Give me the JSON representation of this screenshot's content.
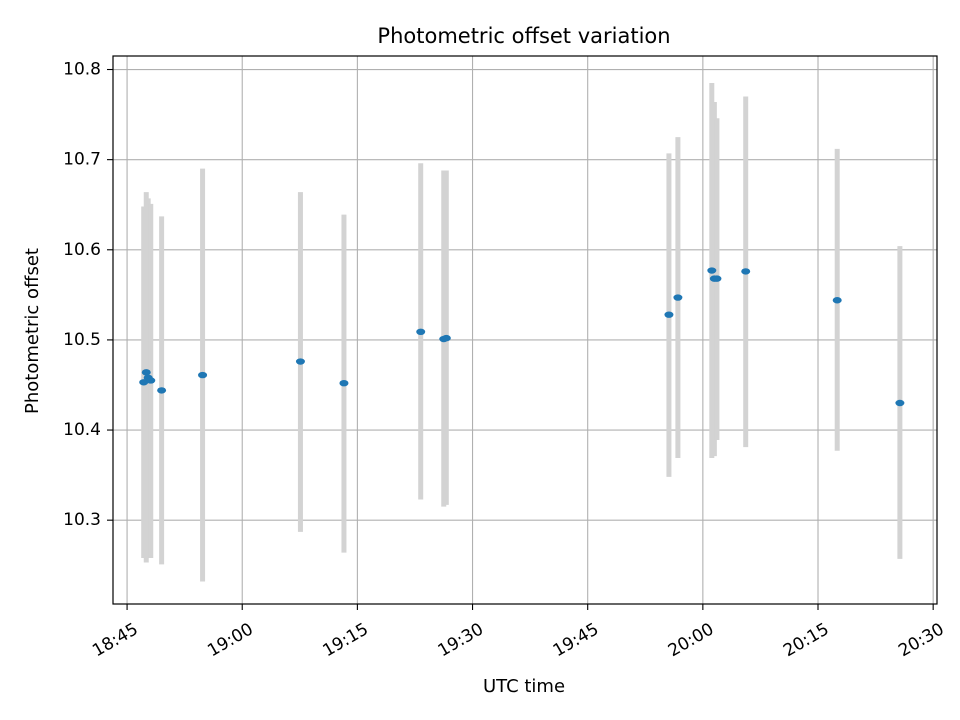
{
  "chart_data": {
    "type": "scatter",
    "title": "Photometric offset variation",
    "xlabel": "UTC time",
    "ylabel": "Photometric offset",
    "grid": true,
    "x_tick_labels": [
      "18:45",
      "19:00",
      "19:15",
      "19:30",
      "19:45",
      "20:00",
      "20:15",
      "20:30"
    ],
    "y_tick_labels": [
      "10.3",
      "10.4",
      "10.5",
      "10.6",
      "10.7",
      "10.8"
    ],
    "x_ticks": [
      "18:45",
      "19:00",
      "19:15",
      "19:30",
      "19:45",
      "20:00",
      "20:15",
      "20:30"
    ],
    "y_ticks": [
      10.3,
      10.4,
      10.5,
      10.6,
      10.7,
      10.8
    ],
    "xlim": [
      "18:43:10",
      "20:30:30"
    ],
    "ylim": [
      10.207,
      10.815
    ],
    "colors": {
      "points": "#1f77b4",
      "errorbars": "#d3d3d3",
      "grid": "#b0b0b0"
    },
    "series": [
      {
        "points": [
          {
            "x": "18:47:10",
            "y": 10.453,
            "low": 10.258,
            "high": 10.648
          },
          {
            "x": "18:47:30",
            "y": 10.464,
            "low": 10.253,
            "high": 10.664
          },
          {
            "x": "18:47:45",
            "y": 10.458,
            "low": 10.258,
            "high": 10.657
          },
          {
            "x": "18:48:05",
            "y": 10.455,
            "low": 10.258,
            "high": 10.651
          },
          {
            "x": "18:49:30",
            "y": 10.444,
            "low": 10.251,
            "high": 10.637
          },
          {
            "x": "18:54:50",
            "y": 10.461,
            "low": 10.232,
            "high": 10.69
          },
          {
            "x": "19:07:35",
            "y": 10.476,
            "low": 10.287,
            "high": 10.664
          },
          {
            "x": "19:13:15",
            "y": 10.452,
            "low": 10.264,
            "high": 10.639
          },
          {
            "x": "19:23:15",
            "y": 10.509,
            "low": 10.323,
            "high": 10.696
          },
          {
            "x": "19:26:15",
            "y": 10.501,
            "low": 10.315,
            "high": 10.688
          },
          {
            "x": "19:26:35",
            "y": 10.502,
            "low": 10.317,
            "high": 10.688
          },
          {
            "x": "19:55:35",
            "y": 10.528,
            "low": 10.348,
            "high": 10.707
          },
          {
            "x": "19:56:45",
            "y": 10.547,
            "low": 10.369,
            "high": 10.725
          },
          {
            "x": "20:01:10",
            "y": 10.577,
            "low": 10.369,
            "high": 10.785
          },
          {
            "x": "20:01:30",
            "y": 10.568,
            "low": 10.371,
            "high": 10.764
          },
          {
            "x": "20:01:50",
            "y": 10.568,
            "low": 10.389,
            "high": 10.746
          },
          {
            "x": "20:05:35",
            "y": 10.576,
            "low": 10.381,
            "high": 10.77
          },
          {
            "x": "20:17:30",
            "y": 10.544,
            "low": 10.377,
            "high": 10.712
          },
          {
            "x": "20:25:40",
            "y": 10.43,
            "low": 10.257,
            "high": 10.604
          }
        ]
      }
    ]
  }
}
